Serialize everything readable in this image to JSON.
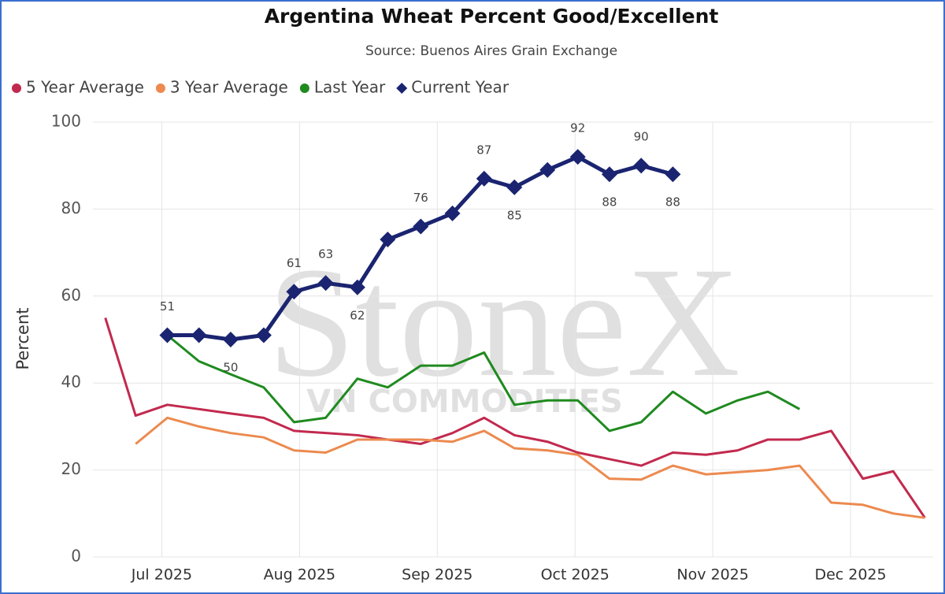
{
  "chart_data": {
    "type": "line",
    "title": "Argentina Wheat Percent Good/Excellent",
    "subtitle": "Source: Buenos Aires Grain Exchange",
    "ylabel": "Percent",
    "watermark": [
      "StoneX",
      "VN COMMODITIES"
    ],
    "x": [
      6.59,
      6.81,
      7.04,
      7.27,
      7.5,
      7.74,
      7.96,
      8.19,
      8.42,
      8.64,
      8.88,
      9.11,
      9.34,
      9.56,
      9.8,
      10.02,
      10.25,
      10.48,
      10.71,
      10.95,
      11.18,
      11.4,
      11.63,
      11.86,
      12.09,
      12.31,
      12.54
    ],
    "xlim": [
      6.5,
      12.6
    ],
    "xticks": [
      {
        "value": 7,
        "label": "Jul 2025"
      },
      {
        "value": 8,
        "label": "Aug 2025"
      },
      {
        "value": 9,
        "label": "Sep 2025"
      },
      {
        "value": 10,
        "label": "Oct 2025"
      },
      {
        "value": 11,
        "label": "Nov 2025"
      },
      {
        "value": 12,
        "label": "Dec 2025"
      }
    ],
    "ylim": [
      0,
      100
    ],
    "yticks": [
      0,
      20,
      40,
      60,
      80,
      100
    ],
    "grid": true,
    "legend": "top-left",
    "series": [
      {
        "name": "5 Year Average",
        "color": "#c2294e",
        "marker": "circle",
        "values": [
          55,
          32.5,
          35,
          34,
          33,
          32,
          29,
          28.5,
          28,
          27,
          26,
          28.5,
          32,
          28,
          26.5,
          24,
          22.5,
          21,
          24,
          23.5,
          24.5,
          27,
          27,
          29,
          18,
          19.7,
          9
        ]
      },
      {
        "name": "3 Year Average",
        "color": "#ec8a4f",
        "marker": "circle",
        "values": [
          null,
          26,
          32,
          30,
          28.5,
          27.5,
          24.5,
          24,
          27,
          27,
          27,
          26.5,
          29,
          25,
          24.5,
          23.5,
          18,
          17.8,
          21,
          19,
          19.5,
          20,
          21,
          12.5,
          12,
          10,
          9
        ]
      },
      {
        "name": "Last Year",
        "color": "#1f8a1f",
        "marker": "circle",
        "values": [
          null,
          null,
          51,
          45,
          42,
          39,
          31,
          32,
          41,
          39,
          44,
          44,
          47,
          35,
          36,
          36,
          29,
          31,
          38,
          33,
          36,
          38,
          34,
          null,
          null,
          null,
          null
        ]
      },
      {
        "name": "Current Year",
        "color": "#1a2470",
        "marker": "diamond",
        "values": [
          null,
          null,
          51,
          51,
          50,
          51,
          61,
          63,
          62,
          73,
          76,
          79,
          87,
          85,
          89,
          92,
          88,
          90,
          88,
          null,
          null,
          null,
          null,
          null,
          null,
          null,
          null
        ],
        "value_labels": [
          null,
          null,
          "51",
          null,
          "50",
          null,
          "61",
          "63",
          "62",
          null,
          "76",
          null,
          "87",
          "85",
          null,
          "92",
          "88",
          "90",
          "88",
          null,
          null,
          null,
          null,
          null,
          null,
          null,
          null
        ]
      }
    ]
  }
}
